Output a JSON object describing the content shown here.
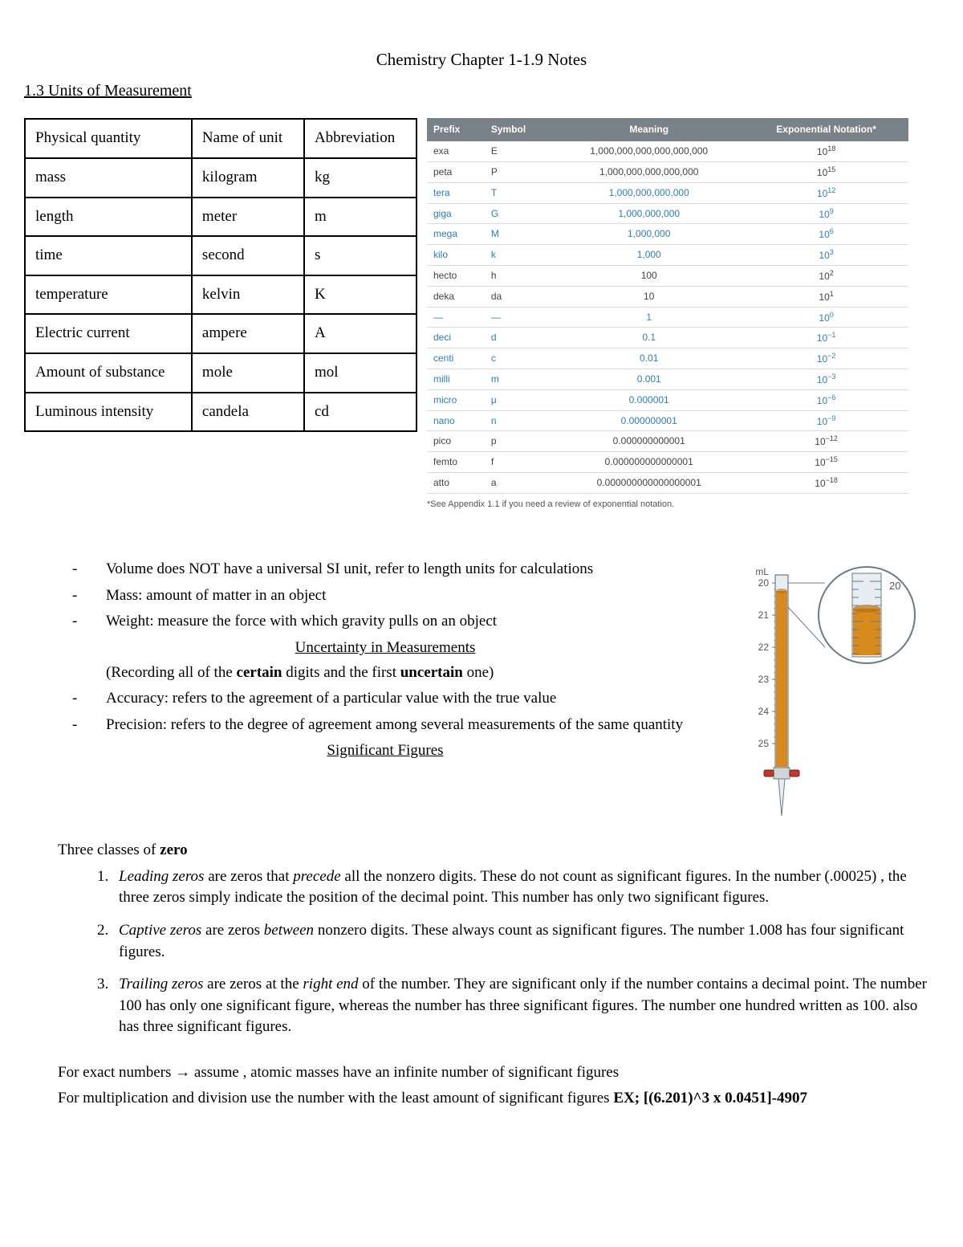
{
  "doc": {
    "title": "Chemistry Chapter 1-1.9 Notes",
    "section": "1.3 Units of Measurement"
  },
  "siTable": {
    "headers": [
      "Physical quantity",
      "Name of unit",
      "Abbreviation"
    ],
    "rows": [
      [
        "mass",
        "kilogram",
        "kg"
      ],
      [
        "length",
        "meter",
        "m"
      ],
      [
        "time",
        "second",
        "s"
      ],
      [
        "temperature",
        "kelvin",
        "K"
      ],
      [
        "Electric current",
        "ampere",
        "A"
      ],
      [
        "Amount of substance",
        "mole",
        "mol"
      ],
      [
        "Luminous intensity",
        "candela",
        "cd"
      ]
    ]
  },
  "prefixTable": {
    "headers": {
      "prefix": "Prefix",
      "symbol": "Symbol",
      "meaning": "Meaning",
      "exp": "Exponential Notation*"
    },
    "rows": [
      {
        "prefix": "exa",
        "symbol": "E",
        "meaning": "1,000,000,000,000,000,000",
        "exp": "18",
        "blue": false
      },
      {
        "prefix": "peta",
        "symbol": "P",
        "meaning": "1,000,000,000,000,000",
        "exp": "15",
        "blue": false
      },
      {
        "prefix": "tera",
        "symbol": "T",
        "meaning": "1,000,000,000,000",
        "exp": "12",
        "blue": true
      },
      {
        "prefix": "giga",
        "symbol": "G",
        "meaning": "1,000,000,000",
        "exp": "9",
        "blue": true
      },
      {
        "prefix": "mega",
        "symbol": "M",
        "meaning": "1,000,000",
        "exp": "6",
        "blue": true
      },
      {
        "prefix": "kilo",
        "symbol": "k",
        "meaning": "1,000",
        "exp": "3",
        "blue": true
      },
      {
        "prefix": "hecto",
        "symbol": "h",
        "meaning": "100",
        "exp": "2",
        "blue": false
      },
      {
        "prefix": "deka",
        "symbol": "da",
        "meaning": "10",
        "exp": "1",
        "blue": false
      },
      {
        "prefix": "—",
        "symbol": "—",
        "meaning": "1",
        "exp": "0",
        "blue": true
      },
      {
        "prefix": "deci",
        "symbol": "d",
        "meaning": "0.1",
        "exp": "−1",
        "blue": true
      },
      {
        "prefix": "centi",
        "symbol": "c",
        "meaning": "0.01",
        "exp": "−2",
        "blue": true
      },
      {
        "prefix": "milli",
        "symbol": "m",
        "meaning": "0.001",
        "exp": "−3",
        "blue": true
      },
      {
        "prefix": "micro",
        "symbol": "μ",
        "meaning": "0.000001",
        "exp": "−6",
        "blue": true
      },
      {
        "prefix": "nano",
        "symbol": "n",
        "meaning": "0.000000001",
        "exp": "−9",
        "blue": true
      },
      {
        "prefix": "pico",
        "symbol": "p",
        "meaning": "0.000000000001",
        "exp": "−12",
        "blue": false
      },
      {
        "prefix": "femto",
        "symbol": "f",
        "meaning": "0.000000000000001",
        "exp": "−15",
        "blue": false
      },
      {
        "prefix": "atto",
        "symbol": "a",
        "meaning": "0.000000000000000001",
        "exp": "−18",
        "blue": false
      }
    ],
    "note": "*See Appendix 1.1 if you need a review of exponential notation."
  },
  "bullets": {
    "b1": "Volume does NOT have a universal SI unit, refer to length units for calculations",
    "b2": "Mass: amount of matter in an object",
    "b3": "Weight: measure the force with which gravity pulls on an object",
    "uncertaintyHeading": "Uncertainty in Measurements",
    "recording_pre": "(Recording all of the ",
    "recording_mid": " digits and the first ",
    "recording_post": " one)",
    "certain": "certain",
    "uncertain": "uncertain",
    "b4": "Accuracy: refers to the agreement of a particular value with the true value",
    "b5": "Precision: refers to the degree of agreement among several measurements of the same quantity",
    "sigfigHeading": "Significant Figures",
    "threeClasses_pre": "Three classes of ",
    "zero": "zero"
  },
  "sigfig": {
    "li1_a": "Leading zeros",
    "li1_b": " are zeros that ",
    "li1_c": "precede",
    "li1_d": " all the nonzero digits. These do not count as significant figures. In the number (.00025) , the three zeros simply indicate the position of the decimal point. This number has only two significant figures.",
    "li2_a": "Captive zeros",
    "li2_b": " are zeros ",
    "li2_c": "between",
    "li2_d": " nonzero digits. These always count as significant figures. The number 1.008 has four significant figures.",
    "li3_a": "Trailing zeros",
    "li3_b": " are zeros at the ",
    "li3_c": "right end",
    "li3_d": " of the number. They are significant only if the number contains a decimal point. The number 100 has only one significant figure, whereas the number  has three significant figures. The number one hundred written as 100. also has three significant figures."
  },
  "bottom": {
    "exact": "For exact numbers → assume , atomic masses have an infinite number of significant figures",
    "mult_pre": "For multiplication and division use the number with the least amount of significant figures ",
    "mult_ex_label": "EX; ",
    "mult_ex": "[(6.201)^3 x 0.0451]-4907"
  },
  "buret": {
    "unit": "mL",
    "ticks": [
      "20",
      "21",
      "22",
      "23",
      "24",
      "25"
    ],
    "zoom_label": "20",
    "colors": {
      "glass": "#e6eef2",
      "liquid": "#d88a1c",
      "liquid_dark": "#b86e10",
      "outline": "#6a7b86",
      "gray_fill": "#cfd6da",
      "stopcock_red": "#c0392b",
      "text": "#555555"
    }
  }
}
